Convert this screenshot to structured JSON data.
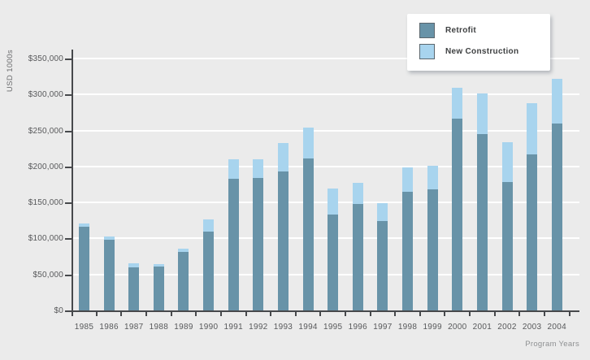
{
  "chart_data": {
    "type": "bar",
    "stacked": true,
    "xlabel": "Program Years",
    "ylabel": "USD 1000s",
    "categories": [
      "1985",
      "1986",
      "1987",
      "1988",
      "1989",
      "1990",
      "1991",
      "1992",
      "1993",
      "1994",
      "1995",
      "1996",
      "1997",
      "1998",
      "1999",
      "2000",
      "2001",
      "2002",
      "2003",
      "2004"
    ],
    "series": [
      {
        "name": "Retrofit",
        "color": "#6893a8",
        "values": [
          116000,
          98000,
          60000,
          61000,
          81000,
          109000,
          183000,
          184000,
          193000,
          211000,
          133000,
          148000,
          124000,
          165000,
          168000,
          266000,
          245000,
          178000,
          217000,
          260000
        ]
      },
      {
        "name": "New Construction",
        "color": "#a8d4ee",
        "values": [
          5000,
          5000,
          5000,
          3000,
          5000,
          17000,
          27000,
          26000,
          40000,
          43000,
          36000,
          29000,
          25000,
          34000,
          33000,
          43000,
          56000,
          56000,
          71000,
          62000
        ]
      }
    ],
    "ylim": [
      0,
      350000
    ],
    "y_tick_step": 50000,
    "y_tick_labels": [
      "$0",
      "$50,000",
      "$100,000",
      "$150,000",
      "$200,000",
      "$250,000",
      "$300,000",
      "$350,000"
    ],
    "grid": true,
    "legend_position": "top-right",
    "colors": {
      "background": "#ebebeb",
      "gridline": "#ffffff",
      "axis": "#47494c",
      "tick_label": "#57585a",
      "axis_title": "#6b6c6e"
    }
  }
}
